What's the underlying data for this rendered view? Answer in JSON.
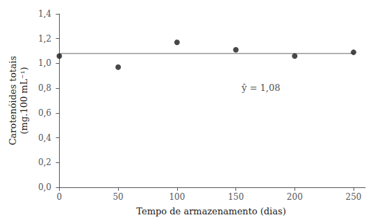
{
  "chart_data": {
    "type": "scatter",
    "xlabel": "Tempo de armazenamento (dias)",
    "ylabel": "Carotenóides totais\n(mg.100 mL⁻¹)",
    "series": [
      {
        "type": "scatter",
        "x": [
          0,
          50,
          100,
          150,
          200,
          250
        ],
        "values": [
          1.06,
          0.97,
          1.17,
          1.11,
          1.06,
          1.09
        ],
        "color": "#1a1a1a"
      },
      {
        "type": "line",
        "x": [
          0,
          250
        ],
        "values": [
          1.08,
          1.08
        ],
        "color": "#666666"
      }
    ],
    "annotations": [
      {
        "text": "ŷ = 1,08",
        "x": 155,
        "y": 0.77
      }
    ],
    "xlim": [
      -2,
      260
    ],
    "xticks": [
      0,
      50,
      100,
      150,
      200,
      250
    ],
    "ylim": [
      0.0,
      1.4
    ],
    "yticks": [
      {
        "value": 0.0,
        "label": "0,0"
      },
      {
        "value": 0.2,
        "label": "0,2"
      },
      {
        "value": 0.4,
        "label": "0,4"
      },
      {
        "value": 0.6,
        "label": "0,6"
      },
      {
        "value": 0.8,
        "label": "0,8"
      },
      {
        "value": 1.0,
        "label": "1,0"
      },
      {
        "value": 1.2,
        "label": "1,2"
      },
      {
        "value": 1.4,
        "label": "1,4"
      }
    ],
    "grid": false
  }
}
